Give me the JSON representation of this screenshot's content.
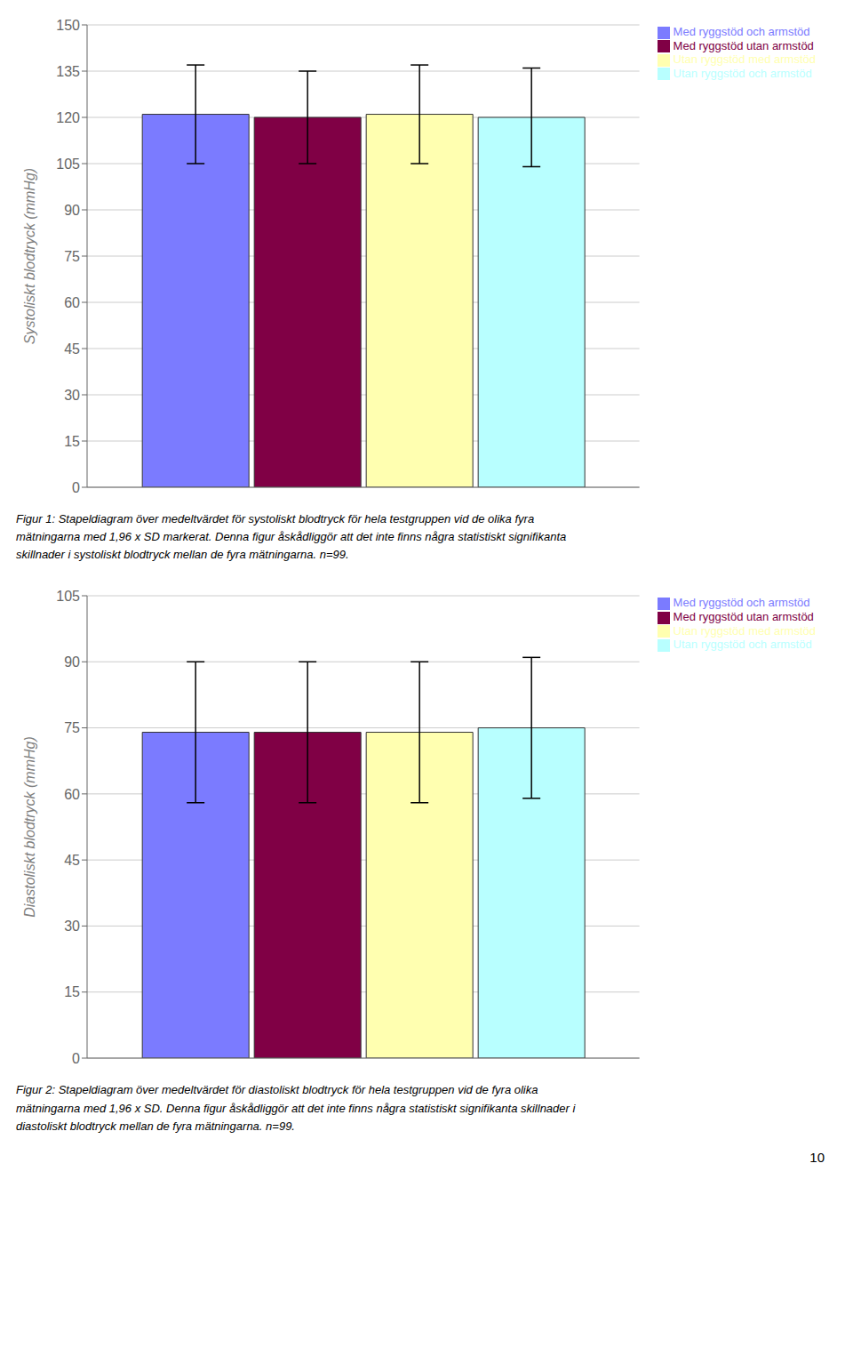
{
  "chart_data": [
    {
      "type": "bar",
      "categories": [
        null
      ],
      "series": [
        {
          "name": "Med ryggstöd och armstöd",
          "color": "#7b7bff",
          "values": [
            121
          ],
          "errors": [
            16
          ]
        },
        {
          "name": "Med ryggstöd utan armstöd",
          "color": "#800045",
          "values": [
            120
          ],
          "errors": [
            15
          ]
        },
        {
          "name": "Utan ryggstöd med armstöd",
          "color": "#ffffb0",
          "values": [
            121
          ],
          "errors": [
            16
          ]
        },
        {
          "name": "Utan ryggstöd och armstöd",
          "color": "#b8ffff",
          "values": [
            120
          ],
          "errors": [
            16
          ]
        }
      ],
      "ylabel": "Systoliskt blodtryck (mmHg)",
      "ylim": [
        0,
        150
      ],
      "yticks": [
        0,
        15,
        30,
        45,
        60,
        75,
        90,
        105,
        120,
        135,
        150
      ],
      "grid": true,
      "legend": "upper right",
      "tick_labels": "y",
      "annotations": [
        "Figur 1: Stapeldiagram över medeltvärdet för systoliskt blodtryck för hela testgruppen vid de olika fyra",
        "mätningarna med 1,96 x SD markerat. Denna figur åskådliggör att det inte finns några statistiskt signifikanta",
        "skillnader i systoliskt blodtryck mellan de fyra mätningarna. n=99."
      ]
    },
    {
      "type": "bar",
      "categories": [
        null
      ],
      "series": [
        {
          "name": "Med ryggstöd och armstöd",
          "color": "#7b7bff",
          "values": [
            74
          ],
          "errors": [
            16
          ]
        },
        {
          "name": "Med ryggstöd utan armstöd",
          "color": "#800045",
          "values": [
            74
          ],
          "errors": [
            16
          ]
        },
        {
          "name": "Utan ryggstöd med armstöd",
          "color": "#ffffb0",
          "values": [
            74
          ],
          "errors": [
            16
          ]
        },
        {
          "name": "Utan ryggstöd och armstöd",
          "color": "#b8ffff",
          "values": [
            75
          ],
          "errors": [
            16
          ]
        }
      ],
      "ylabel": "Diastoliskt blodtryck (mmHg)",
      "ylim": [
        0,
        105
      ],
      "yticks": [
        0,
        15,
        30,
        45,
        60,
        75,
        90,
        105
      ],
      "grid": true,
      "legend": "upper right",
      "tick_labels": "y",
      "annotations": [
        "Figur 2: Stapeldiagram över medeltvärdet för diastoliskt blodtryck för hela testgruppen vid de fyra olika",
        "mätningarna med 1,96 x SD. Denna figur åskådliggör att det inte finns några statistiskt signifikanta skillnader i",
        "diastoliskt blodtryck mellan de fyra mätningarna. n=99."
      ]
    }
  ],
  "annotations": [
    "10"
  ]
}
